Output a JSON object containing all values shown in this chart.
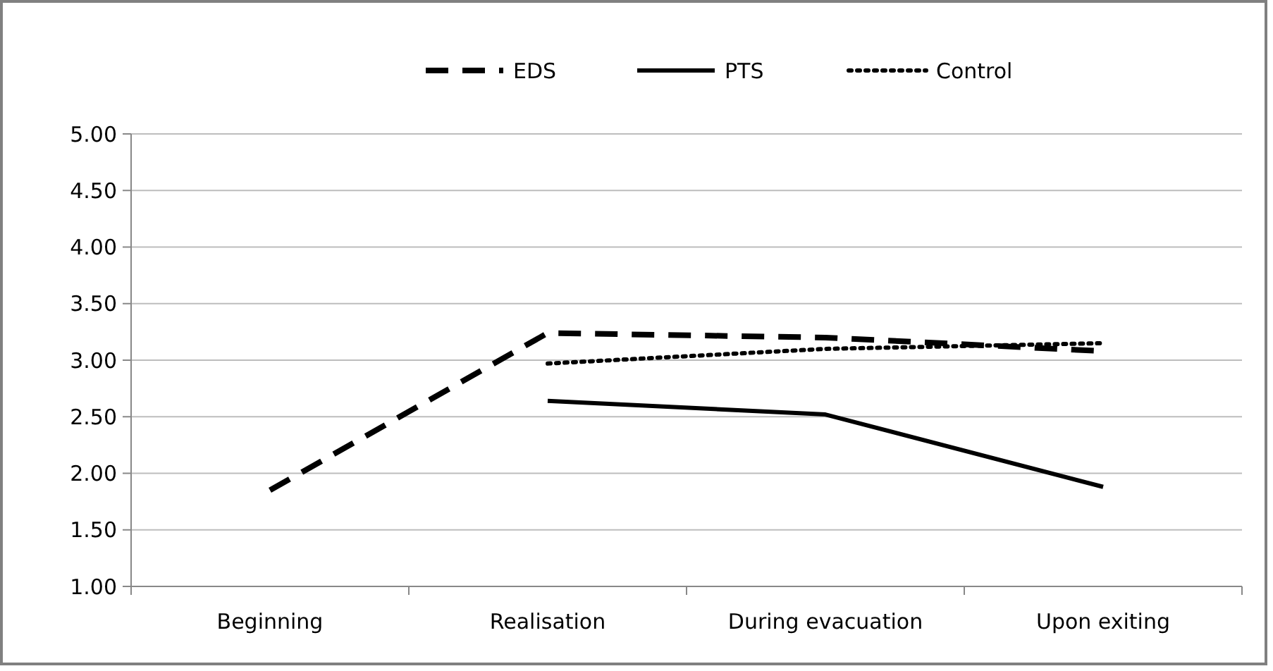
{
  "chart_data": {
    "type": "line",
    "categories": [
      "Beginning",
      "Realisation",
      "During evacuation",
      "Upon exiting"
    ],
    "series": [
      {
        "name": "EDS",
        "color": "#000000",
        "line_style": "dashed",
        "values": [
          1.85,
          3.24,
          3.2,
          3.08
        ]
      },
      {
        "name": "PTS",
        "color": "#000000",
        "line_style": "solid",
        "values": [
          null,
          2.64,
          2.52,
          1.88
        ]
      },
      {
        "name": "Control",
        "color": "#000000",
        "line_style": "dotted",
        "values": [
          null,
          2.97,
          3.1,
          3.15
        ]
      }
    ],
    "ylim": [
      1,
      5
    ],
    "yticks": [
      {
        "value": 1,
        "label": "1.00"
      },
      {
        "value": 1.5,
        "label": "1.50"
      },
      {
        "value": 2,
        "label": "2.00"
      },
      {
        "value": 2.5,
        "label": "2.50"
      },
      {
        "value": 3,
        "label": "3.00"
      },
      {
        "value": 3.5,
        "label": "3.50"
      },
      {
        "value": 4,
        "label": "4.00"
      },
      {
        "value": 4.5,
        "label": "4.50"
      },
      {
        "value": 5,
        "label": "5.00"
      }
    ],
    "grid": "y",
    "legend": "top",
    "marker": "none"
  }
}
